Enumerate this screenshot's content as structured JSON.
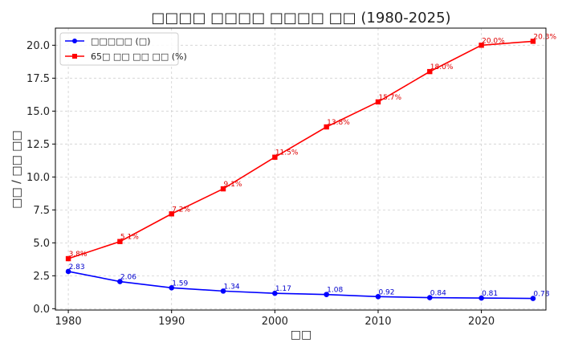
{
  "chart_data": {
    "type": "line",
    "title": "□□□□ □□□□ □□□□ □□ (1980-2025)",
    "xlabel": "□□",
    "ylabel": "□□ / □□ □□",
    "x": [
      1980,
      1985,
      1990,
      1995,
      2000,
      2005,
      2010,
      2015,
      2020,
      2025
    ],
    "xlim": [
      1978.75,
      2026.25
    ],
    "ylim": [
      -0.1,
      21.3
    ],
    "xticks": [
      1980,
      1990,
      2000,
      2010,
      2020
    ],
    "xtick_labels": [
      "1980",
      "1990",
      "2000",
      "2010",
      "2020"
    ],
    "yticks": [
      0,
      2.5,
      5,
      7.5,
      10,
      12.5,
      15,
      17.5,
      20
    ],
    "ytick_labels": [
      "0.0",
      "2.5",
      "5.0",
      "7.5",
      "10.0",
      "12.5",
      "15.0",
      "17.5",
      "20.0"
    ],
    "grid": true,
    "legend_position": "top-left",
    "series": [
      {
        "name": "□□□□□ (□)",
        "color": "#0000ff",
        "marker": "circle",
        "values": [
          2.83,
          2.06,
          1.59,
          1.34,
          1.17,
          1.08,
          0.92,
          0.84,
          0.81,
          0.78
        ],
        "labels": [
          "2.83",
          "2.06",
          "1.59",
          "1.34",
          "1.17",
          "1.08",
          "0.92",
          "0.84",
          "0.81",
          "0.78"
        ],
        "label_color": "#0000cc"
      },
      {
        "name": "65□ □□ □□ □□ (%)",
        "color": "#ff0000",
        "marker": "square",
        "values": [
          3.8,
          5.1,
          7.2,
          9.1,
          11.5,
          13.8,
          15.7,
          18.0,
          20.0,
          20.3
        ],
        "labels": [
          "3.8%",
          "5.1%",
          "7.2%",
          "9.1%",
          "11.5%",
          "13.8%",
          "15.7%",
          "18.0%",
          "20.0%",
          "20.3%"
        ],
        "label_color": "#dd0000"
      }
    ]
  }
}
